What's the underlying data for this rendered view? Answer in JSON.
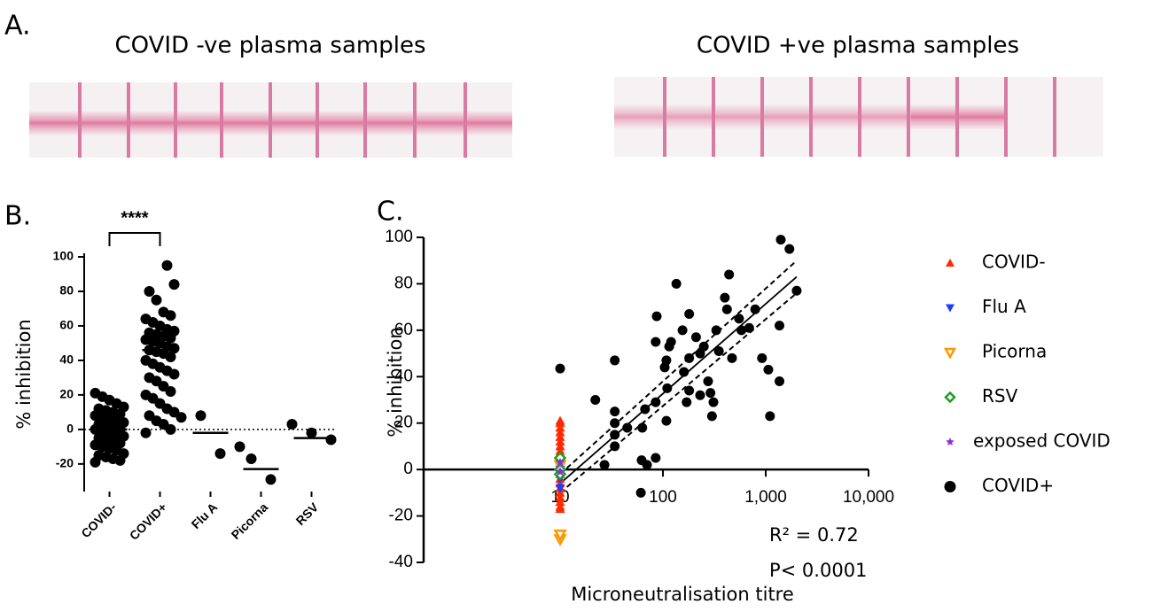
{
  "panel_labels": [
    "A.",
    "B.",
    "C."
  ],
  "strips": [
    {
      "title": "COVID -ve plasma samples"
    },
    {
      "title": "COVID +ve plasma samples"
    }
  ],
  "chart_data": [
    {
      "type": "dotplot",
      "ylabel": "% inhibition",
      "categories": [
        "COVID-",
        "COVID+",
        "Flu A",
        "Picorna",
        "RSV"
      ],
      "values": [
        [
          -19,
          -18,
          -17,
          -16,
          -15,
          -14,
          -12,
          -11,
          -10,
          -9,
          -8,
          -7,
          -6,
          -5,
          -4,
          -3,
          -2,
          -1,
          0,
          0,
          1,
          2,
          3,
          4,
          5,
          6,
          7,
          8,
          9,
          10,
          11,
          12,
          13,
          15,
          17,
          19,
          21
        ],
        [
          -2,
          0,
          3,
          5,
          8,
          10,
          12,
          15,
          18,
          20,
          22,
          25,
          28,
          30,
          32,
          34,
          36,
          38,
          40,
          42,
          44,
          45,
          46,
          47,
          48,
          50,
          51,
          52,
          53,
          54,
          55,
          56,
          57,
          58,
          60,
          62,
          64,
          66,
          68,
          75,
          80,
          84,
          95
        ],
        [
          7,
          8,
          -14,
          -10
        ],
        [
          -17,
          -29
        ],
        [
          3,
          -2,
          -6
        ]
      ],
      "medians": [
        0,
        46,
        -2,
        -23,
        -5
      ],
      "color": "#000000",
      "ylim": [
        -36,
        100
      ],
      "yticks": [
        -20,
        0,
        20,
        40,
        60,
        80,
        100
      ],
      "annotation": "****"
    },
    {
      "type": "scatter",
      "xlabel": "Microneutralisation titre",
      "ylabel": "% inhibition",
      "log_x": true,
      "xlim": [
        0.47,
        10000
      ],
      "xticks": [
        10,
        100,
        {
          "value": 1000,
          "label": "1,000"
        },
        {
          "value": 10000,
          "label": "10,000"
        }
      ],
      "ylim": [
        -40,
        100
      ],
      "yticks": [
        -40,
        -20,
        0,
        20,
        40,
        60,
        80,
        100
      ],
      "series": [
        {
          "name": "COVID-",
          "color": "#ff2a00",
          "marker": "triangle-up",
          "x": [
            10,
            10,
            10,
            10,
            10,
            10,
            10,
            10,
            10,
            10,
            10,
            10,
            10,
            10,
            10,
            10,
            10,
            10,
            10,
            10,
            10
          ],
          "y": [
            21,
            20,
            18,
            16,
            14,
            12,
            10,
            8,
            6,
            4,
            2,
            0,
            -2,
            -4,
            -6,
            -8,
            -10,
            -12,
            -14,
            -16,
            -17
          ]
        },
        {
          "name": "Flu A",
          "color": "#1a3cff",
          "marker": "triangle-down",
          "x": [
            10,
            10,
            10
          ],
          "y": [
            -8,
            -4,
            0
          ]
        },
        {
          "name": "Picorna",
          "color": "#ff9900",
          "marker": "triangle-down-open",
          "x": [
            10,
            10,
            10
          ],
          "y": [
            -30,
            -28,
            2
          ]
        },
        {
          "name": "RSV",
          "color": "#1e9e1e",
          "marker": "diamond-open",
          "x": [
            10,
            10,
            10
          ],
          "y": [
            5,
            0,
            -2
          ]
        },
        {
          "name": "exposed COVID",
          "color": "#8a2be2",
          "marker": "star",
          "x": [
            10,
            10
          ],
          "y": [
            3,
            -1
          ]
        },
        {
          "name": "COVID+",
          "color": "#000000",
          "marker": "circle",
          "x": [
            10,
            22,
            34,
            34,
            34,
            34,
            34,
            27,
            45,
            62,
            61,
            70,
            85,
            63,
            67,
            85,
            87,
            110,
            104,
            108,
            115,
            120,
            108,
            85,
            135,
            155,
            160,
            180,
            180,
            180,
            170,
            210,
            230,
            230,
            250,
            275,
            290,
            310,
            330,
            350,
            300,
            400,
            420,
            440,
            470,
            550,
            580,
            690,
            790,
            920,
            1060,
            1100,
            1400,
            1700,
            1360,
            1360,
            2000
          ],
          "y": [
            43.5,
            30,
            47,
            25,
            20,
            15,
            10,
            2,
            18,
            4,
            -10,
            2,
            5,
            18,
            26,
            29,
            66,
            35,
            44,
            47,
            53,
            55,
            21,
            55,
            80,
            60,
            42,
            67,
            48,
            34,
            29,
            57,
            50,
            32,
            53,
            38,
            33,
            29,
            60,
            51,
            23,
            74,
            69,
            84,
            48,
            65,
            60,
            61,
            69,
            48,
            43,
            23,
            99,
            95,
            38,
            62,
            77
          ]
        }
      ],
      "fit": {
        "x": [
          10,
          2000
        ],
        "y": [
          -6,
          83
        ]
      },
      "ci_upper": {
        "x": [
          10,
          2000
        ],
        "y": [
          -2,
          90
        ]
      },
      "ci_lower": {
        "x": [
          10,
          2000
        ],
        "y": [
          -10,
          76
        ]
      },
      "annotations": [
        "R² = 0.72",
        "P< 0.0001"
      ]
    }
  ]
}
